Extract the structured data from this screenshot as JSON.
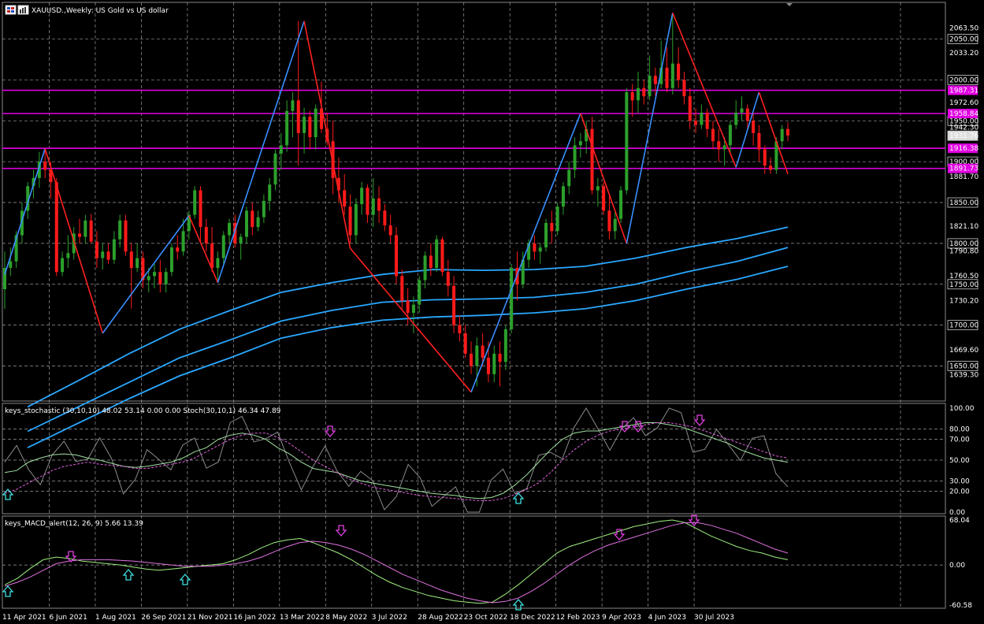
{
  "window": {
    "title": "XAUUSD.,Weekly:  US Gold vs US dollar"
  },
  "colors": {
    "background": "#000000",
    "bull_candle": "#2ca02c",
    "bear_candle": "#ff1a1a",
    "zigzag_up": "#3a8fff",
    "zigzag_down": "#ff2020",
    "level_line": "#e000e0",
    "band": "#2aa8ff",
    "stoch_main": "#a0e0a0",
    "stoch_signal": "#e060e0",
    "macd_main": "#a0f080",
    "macd_signal": "#e070e0",
    "arrow_up": "#40e0e0",
    "arrow_down": "#e040e0",
    "grid": "#9a9a9a"
  },
  "main_price_axis": {
    "ticks": [
      "2063.50",
      "2050.00",
      "2033.20",
      "2000.00",
      "1972.60",
      "1950.00",
      "1942.30",
      "1931.76",
      "1900.00",
      "1881.70",
      "1850.00",
      "1821.10",
      "1800.00",
      "1790.80",
      "1760.50",
      "1750.00",
      "1730.20",
      "1700.00",
      "1669.60",
      "1650.00",
      "1639.30"
    ],
    "tick_values": [
      2063.5,
      2050,
      2033.2,
      2000,
      1972.6,
      1950,
      1942.3,
      1931.76,
      1900,
      1881.7,
      1850,
      1821.1,
      1800,
      1790.8,
      1760.5,
      1750,
      1730.2,
      1700,
      1669.6,
      1650,
      1639.3
    ],
    "boxed": [
      "2050.00",
      "2000.00",
      "1950.00",
      "1900.00",
      "1850.00",
      "1800.00",
      "1750.00",
      "1700.00",
      "1650.00"
    ],
    "current_price": "1931.76",
    "level_labels": [
      "1987.31",
      "1958.84",
      "1916.38",
      "1891.73"
    ],
    "level_values": [
      1987.31,
      1958.84,
      1916.38,
      1891.73
    ],
    "ylim": [
      1610,
      2092
    ]
  },
  "stoch": {
    "header": "keys_stochastic (30,10,10) 48.02 53.14 0.00 0.00 Stoch(30,10,1) 46.34 47.89",
    "ticks": [
      "100.00",
      "80.00",
      "70.00",
      "50.00",
      "30.00",
      "20.00",
      "0.00"
    ],
    "tick_values": [
      100,
      80,
      70,
      50,
      30,
      20,
      0
    ]
  },
  "macd": {
    "header": "keys_MACD_alert(12, 26, 9) 5.66 13.39",
    "ticks": [
      "68.04",
      "0.00",
      "-60.58"
    ],
    "tick_values": [
      68.04,
      0,
      -60.58
    ]
  },
  "time_axis": {
    "labels": [
      "11 Apr 2021",
      "6 Jun 2021",
      "1 Aug 2021",
      "26 Sep 2021",
      "21 Nov 2021",
      "16 Jan 2022",
      "13 Mar 2022",
      "8 May 2022",
      "3 Jul 2022",
      "28 Aug 2022",
      "23 Oct 2022",
      "18 Dec 2022",
      "12 Feb 2023",
      "9 Apr 2023",
      "4 Jun 2023",
      "30 Jul 2023"
    ]
  },
  "chart_data": {
    "type": "candlestick",
    "symbol": "XAUUSD.",
    "timeframe": "Weekly",
    "first_week": "11 Apr 2021",
    "ohlc": [
      [
        1744,
        1790,
        1720,
        1770
      ],
      [
        1770,
        1795,
        1760,
        1778
      ],
      [
        1778,
        1815,
        1770,
        1810
      ],
      [
        1810,
        1850,
        1800,
        1840
      ],
      [
        1840,
        1875,
        1830,
        1870
      ],
      [
        1870,
        1890,
        1855,
        1880
      ],
      [
        1880,
        1912,
        1868,
        1900
      ],
      [
        1900,
        1916,
        1880,
        1890
      ],
      [
        1890,
        1900,
        1855,
        1875
      ],
      [
        1875,
        1880,
        1760,
        1765
      ],
      [
        1765,
        1790,
        1760,
        1782
      ],
      [
        1782,
        1810,
        1770,
        1788
      ],
      [
        1788,
        1820,
        1780,
        1812
      ],
      [
        1812,
        1830,
        1800,
        1808
      ],
      [
        1808,
        1835,
        1800,
        1828
      ],
      [
        1828,
        1836,
        1800,
        1802
      ],
      [
        1802,
        1815,
        1770,
        1782
      ],
      [
        1782,
        1800,
        1768,
        1790
      ],
      [
        1790,
        1800,
        1775,
        1780
      ],
      [
        1780,
        1815,
        1775,
        1805
      ],
      [
        1805,
        1835,
        1795,
        1828
      ],
      [
        1828,
        1835,
        1785,
        1790
      ],
      [
        1790,
        1800,
        1720,
        1770
      ],
      [
        1770,
        1800,
        1765,
        1782
      ],
      [
        1782,
        1790,
        1745,
        1755
      ],
      [
        1755,
        1770,
        1740,
        1760
      ],
      [
        1760,
        1775,
        1745,
        1765
      ],
      [
        1765,
        1780,
        1740,
        1750
      ],
      [
        1750,
        1770,
        1740,
        1765
      ],
      [
        1765,
        1800,
        1760,
        1795
      ],
      [
        1795,
        1810,
        1780,
        1790
      ],
      [
        1790,
        1830,
        1785,
        1815
      ],
      [
        1815,
        1840,
        1805,
        1835
      ],
      [
        1835,
        1870,
        1830,
        1865
      ],
      [
        1865,
        1870,
        1800,
        1820
      ],
      [
        1820,
        1830,
        1790,
        1800
      ],
      [
        1800,
        1820,
        1765,
        1770
      ],
      [
        1770,
        1790,
        1755,
        1782
      ],
      [
        1782,
        1815,
        1775,
        1810
      ],
      [
        1810,
        1830,
        1800,
        1825
      ],
      [
        1825,
        1835,
        1795,
        1800
      ],
      [
        1800,
        1812,
        1780,
        1808
      ],
      [
        1808,
        1845,
        1800,
        1840
      ],
      [
        1840,
        1850,
        1810,
        1820
      ],
      [
        1820,
        1840,
        1815,
        1832
      ],
      [
        1832,
        1860,
        1825,
        1852
      ],
      [
        1852,
        1880,
        1840,
        1872
      ],
      [
        1872,
        1915,
        1865,
        1910
      ],
      [
        1910,
        1935,
        1890,
        1920
      ],
      [
        1920,
        1975,
        1912,
        1962
      ],
      [
        1962,
        1985,
        1930,
        1975
      ],
      [
        1975,
        2072,
        1895,
        1935
      ],
      [
        1935,
        1966,
        1910,
        1955
      ],
      [
        1955,
        1962,
        1915,
        1930
      ],
      [
        1930,
        1970,
        1915,
        1965
      ],
      [
        1965,
        1998,
        1935,
        1940
      ],
      [
        1940,
        1960,
        1920,
        1925
      ],
      [
        1925,
        1950,
        1860,
        1880
      ],
      [
        1880,
        1905,
        1850,
        1865
      ],
      [
        1865,
        1885,
        1835,
        1845
      ],
      [
        1845,
        1860,
        1800,
        1810
      ],
      [
        1810,
        1855,
        1800,
        1848
      ],
      [
        1848,
        1875,
        1835,
        1868
      ],
      [
        1868,
        1872,
        1825,
        1835
      ],
      [
        1835,
        1880,
        1820,
        1855
      ],
      [
        1855,
        1870,
        1825,
        1840
      ],
      [
        1840,
        1848,
        1815,
        1822
      ],
      [
        1822,
        1835,
        1800,
        1810
      ],
      [
        1810,
        1820,
        1750,
        1760
      ],
      [
        1760,
        1768,
        1720,
        1730
      ],
      [
        1730,
        1745,
        1700,
        1715
      ],
      [
        1715,
        1735,
        1690,
        1725
      ],
      [
        1725,
        1760,
        1715,
        1755
      ],
      [
        1755,
        1790,
        1745,
        1785
      ],
      [
        1785,
        1800,
        1760,
        1770
      ],
      [
        1770,
        1810,
        1765,
        1805
      ],
      [
        1805,
        1808,
        1760,
        1765
      ],
      [
        1765,
        1780,
        1735,
        1748
      ],
      [
        1748,
        1760,
        1690,
        1700
      ],
      [
        1700,
        1712,
        1680,
        1690
      ],
      [
        1690,
        1700,
        1660,
        1665
      ],
      [
        1665,
        1680,
        1640,
        1650
      ],
      [
        1650,
        1685,
        1625,
        1675
      ],
      [
        1675,
        1690,
        1650,
        1660
      ],
      [
        1660,
        1680,
        1630,
        1640
      ],
      [
        1640,
        1675,
        1630,
        1665
      ],
      [
        1665,
        1680,
        1625,
        1655
      ],
      [
        1655,
        1700,
        1645,
        1695
      ],
      [
        1695,
        1775,
        1690,
        1770
      ],
      [
        1770,
        1790,
        1730,
        1750
      ],
      [
        1750,
        1790,
        1745,
        1780
      ],
      [
        1780,
        1805,
        1770,
        1800
      ],
      [
        1800,
        1810,
        1780,
        1790
      ],
      [
        1790,
        1800,
        1775,
        1795
      ],
      [
        1795,
        1830,
        1790,
        1825
      ],
      [
        1825,
        1840,
        1800,
        1815
      ],
      [
        1815,
        1850,
        1810,
        1845
      ],
      [
        1845,
        1875,
        1835,
        1870
      ],
      [
        1870,
        1900,
        1860,
        1890
      ],
      [
        1890,
        1930,
        1880,
        1920
      ],
      [
        1920,
        1935,
        1905,
        1925
      ],
      [
        1925,
        1950,
        1910,
        1940
      ],
      [
        1940,
        1955,
        1860,
        1865
      ],
      [
        1865,
        1880,
        1845,
        1870
      ],
      [
        1870,
        1875,
        1835,
        1840
      ],
      [
        1840,
        1860,
        1805,
        1815
      ],
      [
        1815,
        1840,
        1805,
        1830
      ],
      [
        1830,
        1870,
        1825,
        1865
      ],
      [
        1865,
        1990,
        1860,
        1985
      ],
      [
        1985,
        1995,
        1955,
        1975
      ],
      [
        1975,
        2010,
        1960,
        1990
      ],
      [
        1990,
        2000,
        1970,
        1980
      ],
      [
        1980,
        2030,
        1975,
        2005
      ],
      [
        2005,
        2015,
        1980,
        1995
      ],
      [
        1995,
        2048,
        1990,
        2015
      ],
      [
        2015,
        2040,
        1985,
        1990
      ],
      [
        1990,
        2082,
        1982,
        2020
      ],
      [
        2020,
        2040,
        1990,
        2000
      ],
      [
        2000,
        2010,
        1970,
        1980
      ],
      [
        1980,
        1990,
        1940,
        1950
      ],
      [
        1950,
        1965,
        1935,
        1945
      ],
      [
        1945,
        1970,
        1940,
        1960
      ],
      [
        1960,
        1965,
        1930,
        1940
      ],
      [
        1940,
        1950,
        1915,
        1925
      ],
      [
        1925,
        1940,
        1900,
        1915
      ],
      [
        1915,
        1930,
        1895,
        1920
      ],
      [
        1920,
        1950,
        1910,
        1945
      ],
      [
        1945,
        1975,
        1940,
        1960
      ],
      [
        1960,
        1980,
        1950,
        1965
      ],
      [
        1965,
        1970,
        1940,
        1950
      ],
      [
        1950,
        1960,
        1920,
        1935
      ],
      [
        1935,
        1945,
        1900,
        1915
      ],
      [
        1915,
        1920,
        1885,
        1895
      ],
      [
        1895,
        1905,
        1885,
        1890
      ],
      [
        1890,
        1930,
        1885,
        1925
      ],
      [
        1925,
        1945,
        1915,
        1940
      ],
      [
        1940,
        1948,
        1925,
        1932
      ]
    ],
    "zigzag": [
      [
        0,
        1762
      ],
      [
        7,
        1916
      ],
      [
        17,
        1690
      ],
      [
        32,
        1834
      ],
      [
        37,
        1752
      ],
      [
        52,
        2072
      ],
      [
        60,
        1794
      ],
      [
        81,
        1618
      ],
      [
        100,
        1959
      ],
      [
        108,
        1800
      ],
      [
        116,
        2082
      ],
      [
        127,
        1893
      ],
      [
        131,
        1985
      ],
      [
        136,
        1885
      ]
    ],
    "levels": [
      1987.31,
      1958.84,
      1916.38,
      1891.73
    ],
    "bands": {
      "upper": [
        1600,
        1632,
        1665,
        1695,
        1718,
        1740,
        1752,
        1762,
        1768,
        1767,
        1768,
        1772,
        1782,
        1795,
        1806,
        1820
      ],
      "middle": [
        1570,
        1600,
        1630,
        1660,
        1682,
        1705,
        1718,
        1728,
        1731,
        1732,
        1734,
        1740,
        1750,
        1765,
        1778,
        1795
      ],
      "lower": [
        1550,
        1580,
        1610,
        1638,
        1660,
        1684,
        1697,
        1706,
        1710,
        1712,
        1715,
        1720,
        1730,
        1744,
        1756,
        1772
      ]
    },
    "stochastic": {
      "main": [
        38,
        40,
        48,
        52,
        55,
        56,
        55,
        52,
        50,
        47,
        44,
        43,
        44,
        46,
        48,
        52,
        58,
        62,
        70,
        74,
        76,
        74,
        70,
        62,
        56,
        48,
        42,
        40,
        38,
        34,
        30,
        28,
        26,
        24,
        22,
        20,
        18,
        17,
        16,
        14,
        13,
        14,
        18,
        26,
        36,
        48,
        60,
        70,
        76,
        78,
        78,
        80,
        82,
        84,
        86,
        86,
        84,
        82,
        78,
        74,
        70,
        66,
        60,
        56,
        52,
        50,
        48
      ],
      "signal": [
        18,
        22,
        28,
        34,
        40,
        44,
        46,
        48,
        46,
        45,
        44,
        42,
        42,
        44,
        46,
        48,
        52,
        58,
        64,
        70,
        74,
        76,
        76,
        72,
        66,
        58,
        50,
        44,
        38,
        32,
        28,
        24,
        22,
        20,
        18,
        16,
        15,
        14,
        13,
        12,
        11,
        11,
        13,
        17,
        22,
        28,
        38,
        50,
        60,
        68,
        74,
        78,
        80,
        82,
        84,
        86,
        86,
        84,
        82,
        78,
        74,
        70,
        66,
        62,
        58,
        54,
        52
      ]
    },
    "macd": {
      "main": [
        -30,
        -20,
        -5,
        8,
        12,
        10,
        6,
        4,
        2,
        0,
        -3,
        -6,
        -8,
        -6,
        -4,
        -2,
        0,
        2,
        8,
        16,
        26,
        34,
        38,
        40,
        34,
        26,
        18,
        8,
        -4,
        -16,
        -26,
        -34,
        -40,
        -46,
        -50,
        -54,
        -56,
        -58,
        -56,
        -44,
        -30,
        -14,
        2,
        18,
        28,
        34,
        40,
        46,
        52,
        58,
        62,
        66,
        68,
        64,
        54,
        44,
        36,
        28,
        22,
        18,
        12,
        8
      ],
      "signal": [
        -32,
        -26,
        -18,
        -8,
        2,
        6,
        8,
        8,
        8,
        7,
        6,
        4,
        2,
        0,
        -2,
        -2,
        -2,
        0,
        2,
        6,
        12,
        20,
        28,
        34,
        36,
        34,
        30,
        24,
        16,
        6,
        -4,
        -14,
        -22,
        -30,
        -38,
        -44,
        -50,
        -54,
        -57,
        -55,
        -50,
        -40,
        -28,
        -14,
        0,
        12,
        22,
        30,
        36,
        42,
        48,
        54,
        60,
        64,
        64,
        60,
        54,
        48,
        40,
        32,
        24,
        18
      ]
    },
    "stoch_up_arrows": [
      "11 Apr 2021",
      "23 Oct 2022"
    ],
    "stoch_down_arrows": [
      "13 Mar 2022",
      "12 Feb 2023",
      "9 Apr 2023"
    ],
    "macd_up_arrows": [
      "11 Apr 2021",
      "1 Aug 2021",
      "26 Sep 2021",
      "23 Oct 2022"
    ],
    "macd_down_arrows": [
      "6 Jun 2021",
      "13 Mar 2022",
      "12 Feb 2023",
      "9 Apr 2023"
    ]
  }
}
